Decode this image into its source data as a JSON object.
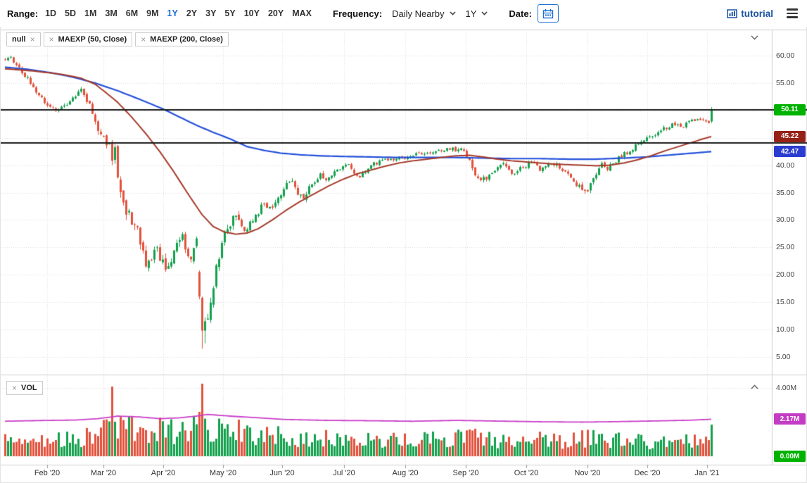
{
  "toolbar": {
    "range_label": "Range:",
    "range_options": [
      "1D",
      "5D",
      "1M",
      "3M",
      "6M",
      "9M",
      "1Y",
      "2Y",
      "3Y",
      "5Y",
      "10Y",
      "20Y",
      "MAX"
    ],
    "active_range": "1Y",
    "frequency_label": "Frequency:",
    "frequency_value": "Daily Nearby",
    "period_value": "1Y",
    "date_label": "Date:",
    "tutorial_label": "tutorial",
    "accent_color": "#1b6ed2"
  },
  "icons": {
    "close": "×"
  },
  "legend": {
    "studies": [
      {
        "label": "null"
      },
      {
        "label": "MAEXP (50, Close)"
      },
      {
        "label": "MAEXP (200, Close)"
      }
    ],
    "volume_label": "VOL"
  },
  "price_axis": {
    "ticks": [
      "60.00",
      "55.00",
      "50.00",
      "45.00",
      "40.00",
      "35.00",
      "30.00",
      "25.00",
      "20.00",
      "15.00",
      "10.00",
      "5.00"
    ],
    "badges": [
      {
        "label": "50.11",
        "value": 50.11,
        "color": "#00b200"
      },
      {
        "label": "45.22",
        "value": 45.22,
        "color": "#962117"
      },
      {
        "label": "42.47",
        "value": 42.47,
        "color": "#2b3cd0"
      }
    ]
  },
  "volume_axis": {
    "tick": "4.00M",
    "badges": [
      {
        "label": "2.17M",
        "value": 2.17,
        "color": "#c43bc4"
      },
      {
        "label": "0.00M",
        "value": 0,
        "color": "#00b200"
      }
    ]
  },
  "x_axis": {
    "labels": [
      "Feb '20",
      "Mar '20",
      "Apr '20",
      "May '20",
      "Jun '20",
      "Jul '20",
      "Aug '20",
      "Sep '20",
      "Oct '20",
      "Nov '20",
      "Dec '20",
      "Jan '21"
    ]
  },
  "chart_data": {
    "type": "candlestick+volume",
    "days": 252,
    "ylim": [
      4,
      63
    ],
    "vol_ylim_M": [
      0,
      4.6
    ],
    "last_price": 50.11,
    "ma50_last": 45.22,
    "ma200_last": 42.47,
    "vol_ma_last_M": 2.17,
    "horizontal_lines": [
      50.11,
      44.0
    ],
    "colors": {
      "up": "#12a04c",
      "down": "#e2513b",
      "ma50": "#a53a2a",
      "ma200": "#2450d9",
      "vol_ma": "#c93ec9",
      "grid": "#dcdcdc",
      "frame": "#cfcfcf",
      "black_line": "#1a1a1a"
    },
    "close_anchors": [
      [
        0,
        59.3
      ],
      [
        2,
        59.8
      ],
      [
        4,
        58.2
      ],
      [
        6,
        57.0
      ],
      [
        9,
        55.2
      ],
      [
        12,
        52.8
      ],
      [
        15,
        51.0
      ],
      [
        18,
        50.2
      ],
      [
        21,
        50.8
      ],
      [
        24,
        52.2
      ],
      [
        27,
        53.6
      ],
      [
        29,
        52.0
      ],
      [
        31,
        49.5
      ],
      [
        33,
        46.5
      ],
      [
        35,
        45.0
      ],
      [
        37,
        43.5
      ],
      [
        38,
        41.0
      ],
      [
        39,
        43.0
      ],
      [
        40,
        38.0
      ],
      [
        41,
        34.8
      ],
      [
        43,
        31.5
      ],
      [
        45,
        30.0
      ],
      [
        47,
        28.0
      ],
      [
        49,
        24.5
      ],
      [
        50,
        22.0
      ],
      [
        52,
        23.5
      ],
      [
        54,
        24.5
      ],
      [
        56,
        22.0
      ],
      [
        57,
        20.8
      ],
      [
        59,
        23.0
      ],
      [
        61,
        25.0
      ],
      [
        63,
        26.8
      ],
      [
        65,
        24.0
      ],
      [
        66,
        22.0
      ],
      [
        67,
        25.5
      ],
      [
        68,
        26.8
      ],
      [
        69,
        21.0
      ],
      [
        70,
        11.0
      ],
      [
        71,
        10.0
      ],
      [
        72,
        13.0
      ],
      [
        73,
        16.0
      ],
      [
        74,
        18.5
      ],
      [
        75,
        21.0
      ],
      [
        76,
        23.5
      ],
      [
        77,
        26.0
      ],
      [
        78,
        27.5
      ],
      [
        80,
        29.5
      ],
      [
        82,
        31.0
      ],
      [
        84,
        29.0
      ],
      [
        86,
        28.3
      ],
      [
        88,
        30.0
      ],
      [
        90,
        31.5
      ],
      [
        92,
        33.0
      ],
      [
        94,
        32.0
      ],
      [
        96,
        33.5
      ],
      [
        98,
        35.0
      ],
      [
        100,
        36.3
      ],
      [
        102,
        37.3
      ],
      [
        104,
        34.8
      ],
      [
        106,
        34.3
      ],
      [
        108,
        36.0
      ],
      [
        110,
        37.2
      ],
      [
        112,
        38.3
      ],
      [
        114,
        37.4
      ],
      [
        116,
        38.3
      ],
      [
        118,
        39.3
      ],
      [
        120,
        39.6
      ],
      [
        122,
        40.2
      ],
      [
        124,
        38.2
      ],
      [
        126,
        37.8
      ],
      [
        128,
        39.0
      ],
      [
        130,
        40.0
      ],
      [
        133,
        40.5
      ],
      [
        136,
        41.0
      ],
      [
        139,
        41.2
      ],
      [
        142,
        41.5
      ],
      [
        146,
        42.0
      ],
      [
        150,
        42.4
      ],
      [
        154,
        42.7
      ],
      [
        158,
        43.0
      ],
      [
        161,
        42.7
      ],
      [
        163,
        42.9
      ],
      [
        165,
        41.0
      ],
      [
        167,
        38.6
      ],
      [
        169,
        37.2
      ],
      [
        171,
        37.6
      ],
      [
        173,
        38.6
      ],
      [
        175,
        39.5
      ],
      [
        177,
        40.0
      ],
      [
        179,
        39.0
      ],
      [
        181,
        38.1
      ],
      [
        183,
        39.4
      ],
      [
        185,
        39.8
      ],
      [
        187,
        40.7
      ],
      [
        190,
        39.1
      ],
      [
        193,
        40.4
      ],
      [
        196,
        40.0
      ],
      [
        199,
        38.6
      ],
      [
        202,
        37.3
      ],
      [
        204,
        36.0
      ],
      [
        206,
        34.9
      ],
      [
        208,
        36.6
      ],
      [
        210,
        38.4
      ],
      [
        212,
        40.0
      ],
      [
        214,
        39.5
      ],
      [
        216,
        40.4
      ],
      [
        218,
        41.4
      ],
      [
        220,
        42.0
      ],
      [
        222,
        42.6
      ],
      [
        224,
        43.4
      ],
      [
        227,
        44.6
      ],
      [
        230,
        45.5
      ],
      [
        233,
        46.4
      ],
      [
        236,
        47.1
      ],
      [
        239,
        47.7
      ],
      [
        241,
        47.0
      ],
      [
        243,
        47.9
      ],
      [
        245,
        48.2
      ],
      [
        247,
        48.0
      ],
      [
        249,
        48.3
      ],
      [
        250,
        48.0
      ],
      [
        251,
        50.11
      ]
    ],
    "ma50_anchors": [
      [
        0,
        57.6
      ],
      [
        10,
        57.2
      ],
      [
        20,
        56.6
      ],
      [
        27,
        55.9
      ],
      [
        32,
        54.8
      ],
      [
        36,
        53.2
      ],
      [
        40,
        51.5
      ],
      [
        45,
        48.8
      ],
      [
        50,
        45.8
      ],
      [
        55,
        42.5
      ],
      [
        60,
        38.8
      ],
      [
        65,
        34.8
      ],
      [
        70,
        31.0
      ],
      [
        74,
        28.8
      ],
      [
        78,
        27.8
      ],
      [
        82,
        27.4
      ],
      [
        86,
        27.6
      ],
      [
        90,
        28.4
      ],
      [
        95,
        30.0
      ],
      [
        100,
        31.8
      ],
      [
        105,
        33.4
      ],
      [
        110,
        34.8
      ],
      [
        115,
        36.2
      ],
      [
        120,
        37.4
      ],
      [
        125,
        38.4
      ],
      [
        130,
        39.1
      ],
      [
        135,
        39.8
      ],
      [
        140,
        40.4
      ],
      [
        145,
        40.8
      ],
      [
        150,
        41.1
      ],
      [
        155,
        41.4
      ],
      [
        160,
        41.7
      ],
      [
        165,
        41.8
      ],
      [
        170,
        41.5
      ],
      [
        175,
        41.1
      ],
      [
        180,
        40.8
      ],
      [
        185,
        40.6
      ],
      [
        190,
        40.4
      ],
      [
        195,
        40.2
      ],
      [
        200,
        40.1
      ],
      [
        205,
        40.0
      ],
      [
        210,
        39.9
      ],
      [
        215,
        40.0
      ],
      [
        220,
        40.4
      ],
      [
        225,
        41.0
      ],
      [
        230,
        41.8
      ],
      [
        235,
        42.7
      ],
      [
        240,
        43.5
      ],
      [
        245,
        44.3
      ],
      [
        248,
        44.8
      ],
      [
        251,
        45.22
      ]
    ],
    "ma200_anchors": [
      [
        0,
        57.9
      ],
      [
        8,
        57.5
      ],
      [
        16,
        56.9
      ],
      [
        24,
        56.1
      ],
      [
        32,
        55.0
      ],
      [
        40,
        53.6
      ],
      [
        48,
        52.0
      ],
      [
        56,
        50.3
      ],
      [
        62,
        48.8
      ],
      [
        68,
        47.3
      ],
      [
        74,
        46.0
      ],
      [
        80,
        44.8
      ],
      [
        86,
        43.4
      ],
      [
        92,
        42.7
      ],
      [
        98,
        42.2
      ],
      [
        105,
        41.9
      ],
      [
        112,
        41.7
      ],
      [
        120,
        41.6
      ],
      [
        130,
        41.5
      ],
      [
        140,
        41.4
      ],
      [
        150,
        41.4
      ],
      [
        160,
        41.4
      ],
      [
        170,
        41.3
      ],
      [
        180,
        41.2
      ],
      [
        190,
        41.2
      ],
      [
        200,
        41.1
      ],
      [
        210,
        41.1
      ],
      [
        220,
        41.3
      ],
      [
        228,
        41.5
      ],
      [
        235,
        41.8
      ],
      [
        242,
        42.1
      ],
      [
        251,
        42.47
      ]
    ],
    "volatility_anchors": [
      [
        0,
        0.9
      ],
      [
        20,
        0.8
      ],
      [
        28,
        1.1
      ],
      [
        34,
        1.8
      ],
      [
        42,
        2.4
      ],
      [
        52,
        2.2
      ],
      [
        60,
        2.0
      ],
      [
        68,
        2.4
      ],
      [
        72,
        2.6
      ],
      [
        78,
        1.9
      ],
      [
        85,
        1.5
      ],
      [
        95,
        1.2
      ],
      [
        105,
        1.3
      ],
      [
        115,
        0.9
      ],
      [
        125,
        0.9
      ],
      [
        140,
        0.7
      ],
      [
        160,
        0.8
      ],
      [
        166,
        1.2
      ],
      [
        172,
        0.9
      ],
      [
        180,
        0.8
      ],
      [
        188,
        0.9
      ],
      [
        196,
        0.9
      ],
      [
        205,
        1.2
      ],
      [
        212,
        1.1
      ],
      [
        220,
        0.9
      ],
      [
        230,
        0.8
      ],
      [
        240,
        0.8
      ],
      [
        251,
        0.7
      ]
    ],
    "volume_profile": [
      [
        0,
        0.9
      ],
      [
        10,
        0.85
      ],
      [
        20,
        0.9
      ],
      [
        28,
        1.1
      ],
      [
        34,
        1.5
      ],
      [
        40,
        1.6
      ],
      [
        48,
        1.5
      ],
      [
        56,
        1.5
      ],
      [
        62,
        1.3
      ],
      [
        68,
        1.6
      ],
      [
        72,
        1.7
      ],
      [
        78,
        1.6
      ],
      [
        84,
        1.4
      ],
      [
        92,
        1.2
      ],
      [
        100,
        1.1
      ],
      [
        110,
        1.0
      ],
      [
        120,
        0.95
      ],
      [
        130,
        0.9
      ],
      [
        140,
        0.85
      ],
      [
        150,
        0.9
      ],
      [
        158,
        0.95
      ],
      [
        166,
        1.05
      ],
      [
        174,
        0.9
      ],
      [
        182,
        0.85
      ],
      [
        190,
        0.9
      ],
      [
        198,
        0.85
      ],
      [
        206,
        1.0
      ],
      [
        214,
        0.95
      ],
      [
        222,
        0.85
      ],
      [
        230,
        0.8
      ],
      [
        240,
        0.8
      ],
      [
        248,
        0.9
      ],
      [
        251,
        1.1
      ]
    ],
    "volume_ma_anchors": [
      [
        0,
        2.05
      ],
      [
        15,
        2.1
      ],
      [
        25,
        2.12
      ],
      [
        33,
        2.2
      ],
      [
        40,
        2.35
      ],
      [
        48,
        2.3
      ],
      [
        55,
        2.2
      ],
      [
        62,
        2.25
      ],
      [
        68,
        2.35
      ],
      [
        72,
        2.45
      ],
      [
        80,
        2.35
      ],
      [
        90,
        2.25
      ],
      [
        100,
        2.15
      ],
      [
        115,
        2.1
      ],
      [
        130,
        2.08
      ],
      [
        145,
        2.05
      ],
      [
        160,
        2.1
      ],
      [
        175,
        2.06
      ],
      [
        190,
        2.02
      ],
      [
        205,
        2.0
      ],
      [
        215,
        2.02
      ],
      [
        225,
        2.05
      ],
      [
        235,
        2.08
      ],
      [
        245,
        2.12
      ],
      [
        251,
        2.17
      ]
    ],
    "overrides": [
      {
        "d": 38,
        "o": 44.2,
        "h": 44.6,
        "l": 40.0,
        "c": 40.8,
        "v": 4.08
      },
      {
        "d": 44,
        "v": 2.35
      },
      {
        "d": 56,
        "v": 2.05
      },
      {
        "d": 69,
        "o": 20.5,
        "h": 20.8,
        "l": 15.5,
        "c": 16.0,
        "v": 2.6
      },
      {
        "d": 70,
        "o": 15.8,
        "h": 16.0,
        "l": 6.5,
        "c": 9.8,
        "v": 4.25
      },
      {
        "d": 71,
        "o": 9.8,
        "h": 12.2,
        "l": 7.5,
        "c": 11.5,
        "v": 2.2
      },
      {
        "d": 251,
        "o": 48.0,
        "h": 50.6,
        "l": 47.7,
        "c": 50.11,
        "v": 1.85
      }
    ]
  }
}
